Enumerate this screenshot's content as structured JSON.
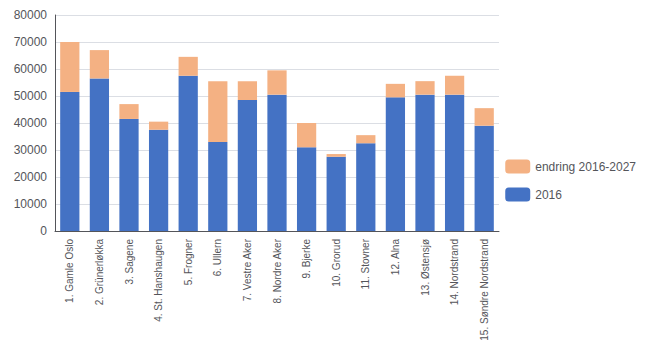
{
  "chart_data": {
    "type": "bar",
    "stacked": true,
    "categories": [
      "1. Gamle Oslo",
      "2. Grünerløkka",
      "3. Sagene",
      "4. St. Hanshaugen",
      "5. Frogner",
      "6. Ullern",
      "7. Vestre Aker",
      "8. Nordre Aker",
      "9. Bjerke",
      "10. Grorud",
      "11. Stovner",
      "12. Alna",
      "13. Østensjø",
      "14. Nordstrand",
      "15. Søndre Nordstrand"
    ],
    "series": [
      {
        "name": "2016",
        "color": "#4472C4",
        "values": [
          51500,
          56500,
          41500,
          37500,
          57500,
          33000,
          48500,
          50500,
          31000,
          27500,
          32500,
          49500,
          50500,
          50500,
          39000
        ]
      },
      {
        "name": "endring 2016-2027",
        "color": "#F4B183",
        "values": [
          18500,
          10500,
          5500,
          3000,
          7000,
          22500,
          7000,
          9000,
          9000,
          1000,
          3000,
          5000,
          5000,
          7000,
          6500
        ]
      }
    ],
    "ylim": [
      0,
      80000
    ],
    "yticks": [
      0,
      10000,
      20000,
      30000,
      40000,
      50000,
      60000,
      70000,
      80000
    ],
    "grid": true,
    "legend": "right"
  }
}
